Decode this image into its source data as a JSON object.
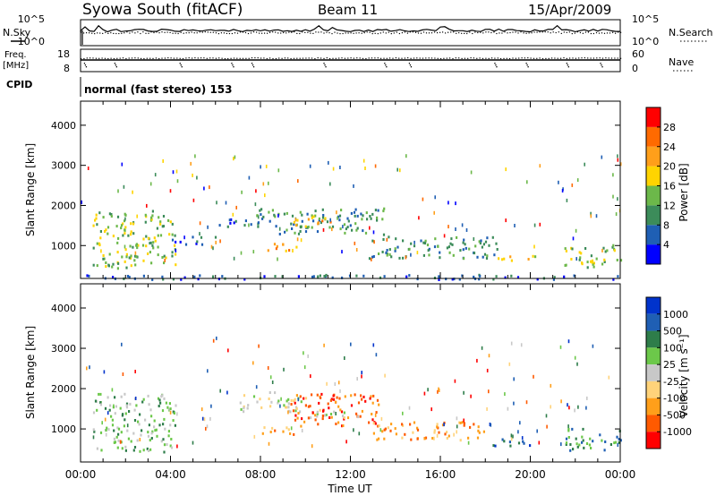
{
  "header": {
    "title": "Syowa South (fitACF)",
    "beam": "Beam 11",
    "date": "15/Apr/2009"
  },
  "left_labels": {
    "nsky": "N.Sky",
    "freq_1": "Freq.",
    "freq_2": "[MHz]",
    "cpid": "CPID"
  },
  "right_labels": {
    "nsearch": "N.Search",
    "nave": "Nave"
  },
  "cpid_text": "normal (fast stereo) 153",
  "x_axis_title": "Time UT",
  "colors": {
    "power_scale": [
      "#0000ff",
      "#1f5fb4",
      "#3c8c5a",
      "#6cb84a",
      "#ffd400",
      "#ff9f1a",
      "#ff6a00",
      "#ff0000"
    ],
    "velocity_scale": [
      "#ff0000",
      "#ff5a00",
      "#ff9f1a",
      "#ffd37a",
      "#c8c8c8",
      "#6cc84a",
      "#2e7d4a",
      "#1f5fb4",
      "#0033cc"
    ]
  },
  "chart_data": [
    {
      "type": "line",
      "name": "noise-search-panel",
      "ylabels": [
        "10^5",
        "10^0"
      ],
      "right_ylabels": [
        "10^5",
        "10^0"
      ],
      "x_range_hours": [
        0,
        24
      ],
      "series": [
        {
          "name": "N.Sky",
          "style": "solid",
          "level": "near top"
        },
        {
          "name": "N.Search",
          "style": "dotted",
          "level": "near top"
        }
      ]
    },
    {
      "type": "line",
      "name": "frequency-nave-panel",
      "ylabels": [
        "18",
        "8"
      ],
      "right_ylabels": [
        "60",
        "0"
      ],
      "series": [
        {
          "name": "Freq.",
          "units": "MHz"
        },
        {
          "name": "Nave",
          "style": "dotted"
        }
      ]
    },
    {
      "type": "heatmap",
      "name": "power-panel",
      "ylabel": "Slant Range [km]",
      "ylim": [
        180,
        4600
      ],
      "yticks": [
        1000,
        2000,
        3000,
        4000
      ],
      "xlim": [
        0,
        24
      ],
      "xtick_labels": [
        "00:00",
        "04:00",
        "08:00",
        "12:00",
        "16:00",
        "20:00",
        "00:00"
      ],
      "colorbar": {
        "label": "Power [dB]",
        "ticks": [
          "4",
          "8",
          "12",
          "16",
          "20",
          "24",
          "28"
        ]
      },
      "echo_regions": [
        {
          "t0": 0.5,
          "t1": 4.2,
          "r0": 450,
          "r1": 1900,
          "level": 3
        },
        {
          "t0": 4.0,
          "t1": 6.0,
          "r0": 1050,
          "r1": 1250,
          "level": 1
        },
        {
          "t0": 6.0,
          "t1": 8.5,
          "r0": 1500,
          "r1": 1700,
          "level": 1
        },
        {
          "t0": 7.8,
          "t1": 13.6,
          "r0": 1300,
          "r1": 1950,
          "level": 2
        },
        {
          "t0": 9.4,
          "t1": 11.2,
          "r0": 1500,
          "r1": 1760,
          "level": 5
        },
        {
          "t0": 8.3,
          "t1": 9.6,
          "r0": 880,
          "r1": 1150,
          "level": 5
        },
        {
          "t0": 12.8,
          "t1": 18.5,
          "r0": 700,
          "r1": 1250,
          "level": 2
        },
        {
          "t0": 18.0,
          "t1": 20.2,
          "r0": 620,
          "r1": 780,
          "level": 4
        },
        {
          "t0": 21.5,
          "t1": 24.0,
          "r0": 480,
          "r1": 1050,
          "level": 3
        },
        {
          "t0": 0.0,
          "t1": 24.0,
          "r0": 180,
          "r1": 300,
          "level": 1
        }
      ]
    },
    {
      "type": "heatmap",
      "name": "velocity-panel",
      "ylabel": "Slant Range [km]",
      "ylim": [
        180,
        4600
      ],
      "yticks": [
        1000,
        2000,
        3000,
        4000
      ],
      "xlim": [
        0,
        24
      ],
      "xtick_labels": [
        "00:00",
        "04:00",
        "08:00",
        "12:00",
        "16:00",
        "20:00",
        "00:00"
      ],
      "colorbar": {
        "label": "Velocity [m s⁻¹]",
        "ticks": [
          "1000",
          "500",
          "100",
          "25",
          "-25",
          "-100",
          "-500",
          "-1000"
        ]
      },
      "echo_regions": [
        {
          "t0": 0.5,
          "t1": 4.2,
          "r0": 450,
          "r1": 1900,
          "level": 5
        },
        {
          "t0": 7.0,
          "t1": 10.0,
          "r0": 1450,
          "r1": 1950,
          "level": 4
        },
        {
          "t0": 9.3,
          "t1": 13.3,
          "r0": 1100,
          "r1": 1900,
          "level": 1
        },
        {
          "t0": 10.0,
          "t1": 12.5,
          "r0": 1300,
          "r1": 1500,
          "level": 4
        },
        {
          "t0": 8.0,
          "t1": 9.5,
          "r0": 880,
          "r1": 1150,
          "level": 2
        },
        {
          "t0": 13.0,
          "t1": 18.0,
          "r0": 750,
          "r1": 1200,
          "level": 2
        },
        {
          "t0": 18.0,
          "t1": 20.0,
          "r0": 600,
          "r1": 800,
          "level": 7
        },
        {
          "t0": 21.5,
          "t1": 24.0,
          "r0": 480,
          "r1": 1050,
          "level": 6
        }
      ]
    }
  ]
}
